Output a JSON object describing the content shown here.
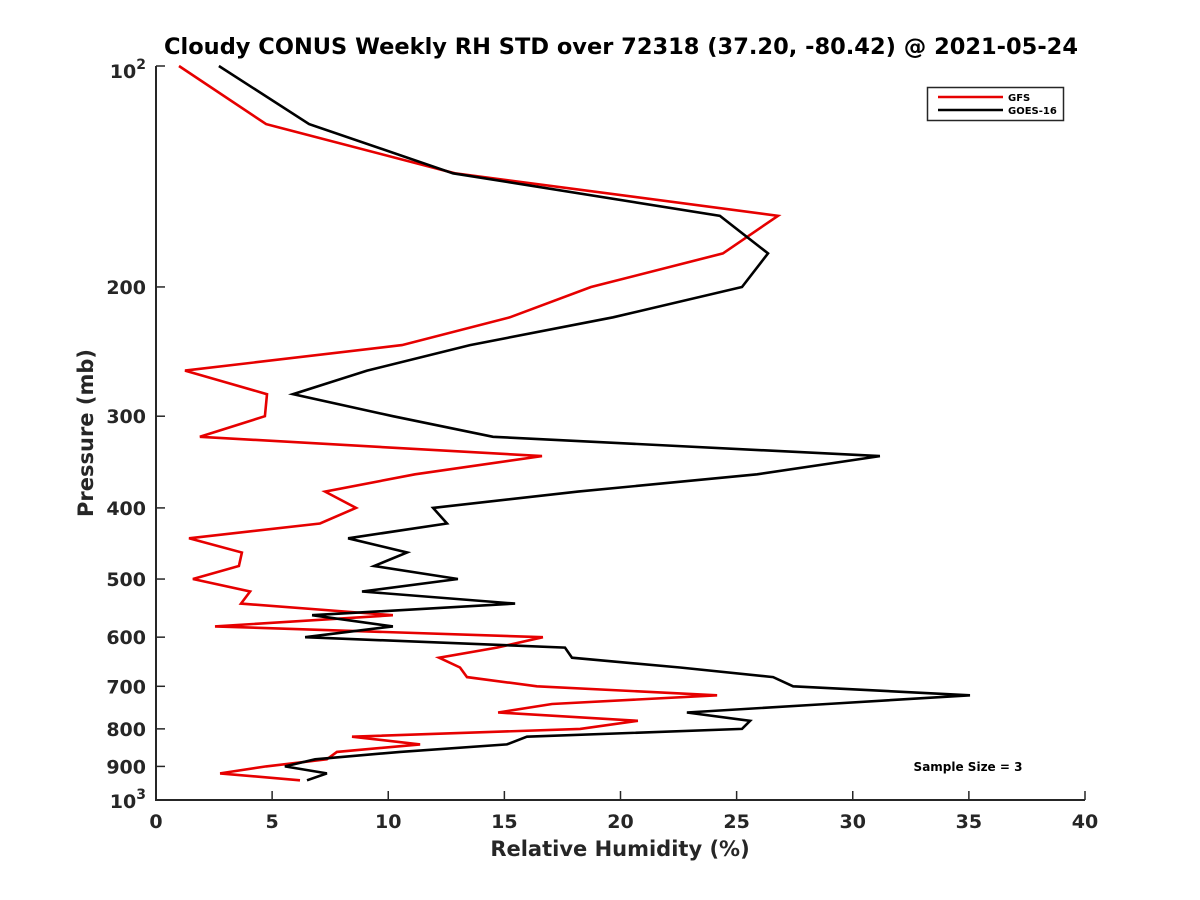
{
  "chart_data": {
    "type": "line",
    "title": "Cloudy CONUS Weekly RH STD over 72318 (37.20, -80.42) @ 2021-05-24",
    "xlabel": "Relative Humidity (%)",
    "ylabel": "Pressure (mb)",
    "xlim": [
      0,
      40
    ],
    "ylim": [
      100,
      1000
    ],
    "yscale": "log",
    "y_reversed": true,
    "grid": false,
    "xticks": [
      0,
      5,
      10,
      15,
      20,
      25,
      30,
      35,
      40
    ],
    "xtick_labels": [
      "0",
      "5",
      "10",
      "15",
      "20",
      "25",
      "30",
      "35",
      "40"
    ],
    "yticks": [
      100,
      200,
      300,
      400,
      500,
      600,
      700,
      800,
      900,
      1000
    ],
    "ytick_labels": [
      {
        "base": "10",
        "exp": "2"
      },
      {
        "base": "200"
      },
      {
        "base": "300"
      },
      {
        "base": "400"
      },
      {
        "base": "500"
      },
      {
        "base": "600"
      },
      {
        "base": "700"
      },
      {
        "base": "800"
      },
      {
        "base": "900"
      },
      {
        "base": "10",
        "exp": "3"
      }
    ],
    "pressure_levels": [
      100,
      120,
      140,
      160,
      180,
      200,
      220,
      240,
      260,
      280,
      300,
      320,
      340,
      360,
      380,
      400,
      420,
      440,
      460,
      480,
      500,
      520,
      540,
      560,
      580,
      600,
      620,
      640,
      660,
      680,
      700,
      720,
      740,
      760,
      780,
      800,
      820,
      840,
      860,
      880,
      900,
      920,
      940
    ],
    "series": [
      {
        "name": "GFS",
        "color": "#e60000",
        "values": [
          0.99,
          4.74,
          12.87,
          26.78,
          24.41,
          18.73,
          15.24,
          10.59,
          1.25,
          4.78,
          4.69,
          1.89,
          16.62,
          11.15,
          7.28,
          8.61,
          7.06,
          1.42,
          3.7,
          3.57,
          1.59,
          4.05,
          3.66,
          10.2,
          2.54,
          16.66,
          14.68,
          12.19,
          13.09,
          13.39,
          16.4,
          24.16,
          17.05,
          14.73,
          20.75,
          18.26,
          8.44,
          11.37,
          7.79,
          7.36,
          4.74,
          2.76,
          6.2
        ]
      },
      {
        "name": "GOES-16",
        "color": "#000000",
        "values": [
          2.71,
          6.59,
          12.79,
          24.28,
          26.35,
          25.23,
          19.68,
          13.52,
          9.09,
          5.9,
          10.2,
          14.51,
          31.17,
          25.88,
          18.17,
          11.93,
          12.53,
          8.27,
          10.81,
          9.39,
          13.0,
          8.87,
          15.46,
          6.72,
          10.2,
          6.42,
          17.61,
          17.91,
          22.56,
          26.57,
          27.43,
          35.05,
          28.89,
          22.86,
          25.58,
          25.23,
          15.97,
          15.11,
          10.51,
          6.85,
          5.55,
          7.36,
          6.5
        ]
      }
    ],
    "legend": {
      "position": "top-right",
      "entries": [
        "GFS",
        "GOES-16"
      ]
    },
    "annotation": "Sample Size = 3"
  }
}
